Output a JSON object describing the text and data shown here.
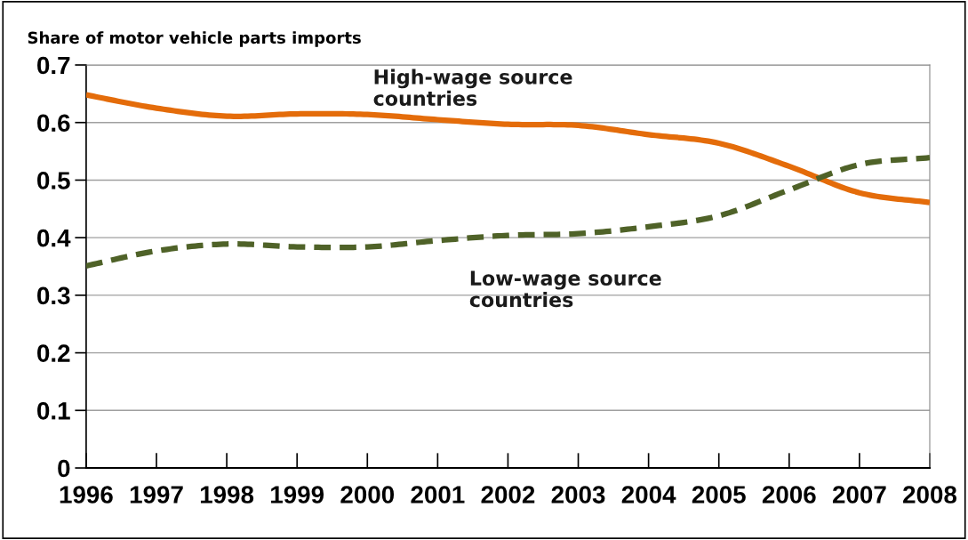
{
  "chart_data": {
    "type": "line",
    "ylabel": "Share of motor vehicle parts imports",
    "x": [
      1996,
      1997,
      1998,
      1999,
      2000,
      2001,
      2002,
      2003,
      2004,
      2005,
      2006,
      2007,
      2008
    ],
    "series": [
      {
        "name": "High-wage source\ncountries",
        "color": "#e46c0a",
        "line_style": "solid",
        "values": [
          0.648,
          0.625,
          0.611,
          0.615,
          0.614,
          0.605,
          0.597,
          0.595,
          0.579,
          0.564,
          0.524,
          0.478,
          0.461
        ]
      },
      {
        "name": "Low-wage source\ncountries",
        "color": "#4f6228",
        "line_style": "dashed",
        "values": [
          0.351,
          0.377,
          0.389,
          0.384,
          0.384,
          0.395,
          0.404,
          0.407,
          0.419,
          0.438,
          0.483,
          0.527,
          0.539
        ]
      }
    ],
    "xlim": [
      1996,
      2008
    ],
    "xticks": [
      1996,
      1997,
      1998,
      1999,
      2000,
      2001,
      2002,
      2003,
      2004,
      2005,
      2006,
      2007,
      2008
    ],
    "ylim": [
      0,
      0.7
    ],
    "yticks": [
      0,
      0.1,
      0.2,
      0.3,
      0.4,
      0.5,
      0.6,
      0.7
    ],
    "grid": "y",
    "legend": false,
    "marker": "none"
  }
}
